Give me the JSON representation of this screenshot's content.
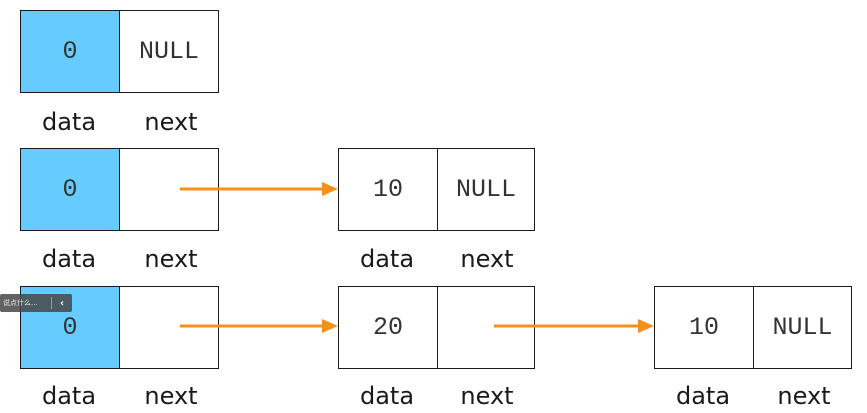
{
  "colors": {
    "data_fill": "#66ccff",
    "arrow": "#f5901e",
    "border": "#1a1a1a"
  },
  "labels": {
    "data": "data",
    "next": "next"
  },
  "rows": [
    {
      "nodes": [
        {
          "data": "0",
          "next": "NULL"
        }
      ]
    },
    {
      "nodes": [
        {
          "data": "0",
          "next": ""
        },
        {
          "data": "10",
          "next": "NULL"
        }
      ]
    },
    {
      "nodes": [
        {
          "data": "0",
          "next": ""
        },
        {
          "data": "20",
          "next": ""
        },
        {
          "data": "10",
          "next": "NULL"
        }
      ]
    }
  ],
  "overlay": {
    "hint": "说点什么...",
    "collapse_icon": "chevron-left-icon"
  }
}
